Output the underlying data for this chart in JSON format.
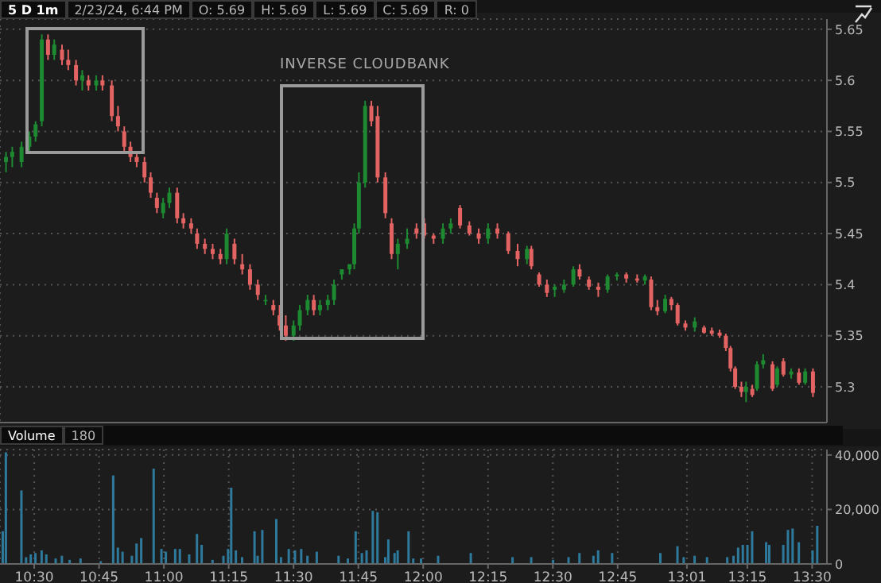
{
  "chart_data": [
    {
      "type": "candlestick",
      "title": "5 D 1m",
      "annotations": [
        "2/23/24, 6:44 PM",
        "O: 5.69",
        "H: 5.69",
        "L: 5.69",
        "C: 5.69",
        "R: 0",
        "INVERSE CLOUDBANK"
      ],
      "x": [
        10.392,
        10.416,
        10.452,
        10.482,
        10.506,
        10.53,
        10.554,
        10.578,
        10.608,
        10.632,
        10.662,
        10.686,
        10.71,
        10.74,
        10.764,
        10.8,
        10.824,
        10.848,
        10.872,
        10.896,
        10.926,
        10.95,
        10.974,
        10.998,
        11.022,
        11.052,
        11.076,
        11.106,
        11.129,
        11.159,
        11.189,
        11.219,
        11.243,
        11.273,
        11.303,
        11.333,
        11.363,
        11.393,
        11.423,
        11.447,
        11.471,
        11.501,
        11.525,
        11.555,
        11.579,
        11.603,
        11.633,
        11.657,
        11.687,
        11.717,
        11.735,
        11.753,
        11.777,
        11.801,
        11.825,
        11.855,
        11.879,
        11.903,
        11.939,
        11.975,
        12.005,
        12.041,
        12.077,
        12.107,
        12.143,
        12.179,
        12.215,
        12.251,
        12.287,
        12.329,
        12.365,
        12.401,
        12.418,
        12.448,
        12.478,
        12.508,
        12.544,
        12.58,
        12.604,
        12.64,
        12.676,
        12.712,
        12.748,
        12.784,
        12.826,
        12.856,
        12.88,
        12.904,
        12.934,
        12.958,
        12.982,
        13.012,
        13.048,
        13.084,
        13.114,
        13.144,
        13.168,
        13.186,
        13.204,
        13.228,
        13.246,
        13.27,
        13.288,
        13.312,
        13.348,
        13.366,
        13.39,
        13.42,
        13.45,
        13.474,
        13.504
      ],
      "ohlc": [
        [
          5.52,
          5.53,
          5.51,
          5.525
        ],
        [
          5.525,
          5.535,
          5.515,
          5.53
        ],
        [
          5.52,
          5.54,
          5.515,
          5.535
        ],
        [
          5.535,
          5.55,
          5.53,
          5.545
        ],
        [
          5.545,
          5.56,
          5.54,
          5.557
        ],
        [
          5.56,
          5.645,
          5.555,
          5.64
        ],
        [
          5.64,
          5.645,
          5.62,
          5.625
        ],
        [
          5.625,
          5.64,
          5.62,
          5.635
        ],
        [
          5.63,
          5.635,
          5.615,
          5.62
        ],
        [
          5.62,
          5.63,
          5.61,
          5.615
        ],
        [
          5.615,
          5.62,
          5.595,
          5.6
        ],
        [
          5.6,
          5.61,
          5.59,
          5.605
        ],
        [
          5.6,
          5.605,
          5.59,
          5.595
        ],
        [
          5.595,
          5.605,
          5.59,
          5.6
        ],
        [
          5.6,
          5.605,
          5.59,
          5.595
        ],
        [
          5.595,
          5.6,
          5.56,
          5.565
        ],
        [
          5.565,
          5.575,
          5.55,
          5.555
        ],
        [
          5.55,
          5.555,
          5.53,
          5.535
        ],
        [
          5.535,
          5.54,
          5.52,
          5.525
        ],
        [
          5.525,
          5.53,
          5.515,
          5.52
        ],
        [
          5.52,
          5.525,
          5.5,
          5.505
        ],
        [
          5.505,
          5.51,
          5.485,
          5.49
        ],
        [
          5.485,
          5.49,
          5.47,
          5.475
        ],
        [
          5.47,
          5.485,
          5.465,
          5.48
        ],
        [
          5.48,
          5.495,
          5.475,
          5.49
        ],
        [
          5.49,
          5.495,
          5.46,
          5.465
        ],
        [
          5.465,
          5.47,
          5.455,
          5.46
        ],
        [
          5.46,
          5.465,
          5.45,
          5.455
        ],
        [
          5.45,
          5.455,
          5.435,
          5.44
        ],
        [
          5.44,
          5.445,
          5.43,
          5.435
        ],
        [
          5.435,
          5.44,
          5.425,
          5.43
        ],
        [
          5.43,
          5.435,
          5.42,
          5.425
        ],
        [
          5.425,
          5.455,
          5.42,
          5.45
        ],
        [
          5.44,
          5.445,
          5.42,
          5.425
        ],
        [
          5.42,
          5.43,
          5.41,
          5.415
        ],
        [
          5.415,
          5.42,
          5.395,
          5.4
        ],
        [
          5.4,
          5.405,
          5.385,
          5.39
        ],
        [
          5.385,
          5.39,
          5.38,
          5.385
        ],
        [
          5.38,
          5.385,
          5.37,
          5.375
        ],
        [
          5.37,
          5.38,
          5.355,
          5.36
        ],
        [
          5.36,
          5.37,
          5.345,
          5.35
        ],
        [
          5.35,
          5.365,
          5.345,
          5.36
        ],
        [
          5.36,
          5.38,
          5.355,
          5.375
        ],
        [
          5.375,
          5.39,
          5.37,
          5.385
        ],
        [
          5.385,
          5.39,
          5.37,
          5.375
        ],
        [
          5.375,
          5.385,
          5.37,
          5.38
        ],
        [
          5.38,
          5.39,
          5.375,
          5.385
        ],
        [
          5.385,
          5.405,
          5.38,
          5.4
        ],
        [
          5.41,
          5.415,
          5.405,
          5.415
        ],
        [
          5.415,
          5.42,
          5.41,
          5.42
        ],
        [
          5.42,
          5.46,
          5.415,
          5.455
        ],
        [
          5.455,
          5.51,
          5.45,
          5.5
        ],
        [
          5.5,
          5.58,
          5.495,
          5.575
        ],
        [
          5.575,
          5.58,
          5.555,
          5.56
        ],
        [
          5.565,
          5.575,
          5.5,
          5.505
        ],
        [
          5.505,
          5.51,
          5.465,
          5.47
        ],
        [
          5.46,
          5.465,
          5.425,
          5.43
        ],
        [
          5.43,
          5.445,
          5.415,
          5.44
        ],
        [
          5.44,
          5.455,
          5.435,
          5.445
        ],
        [
          5.455,
          5.46,
          5.445,
          5.45
        ],
        [
          5.46,
          5.465,
          5.445,
          5.448
        ],
        [
          5.448,
          5.45,
          5.44,
          5.445
        ],
        [
          5.445,
          5.46,
          5.44,
          5.455
        ],
        [
          5.455,
          5.465,
          5.45,
          5.46
        ],
        [
          5.475,
          5.478,
          5.455,
          5.458
        ],
        [
          5.458,
          5.462,
          5.448,
          5.45
        ],
        [
          5.45,
          5.455,
          5.44,
          5.445
        ],
        [
          5.445,
          5.46,
          5.44,
          5.455
        ],
        [
          5.455,
          5.46,
          5.445,
          5.45
        ],
        [
          5.45,
          5.452,
          5.43,
          5.433
        ],
        [
          5.433,
          5.44,
          5.418,
          5.425
        ],
        [
          5.425,
          5.438,
          5.42,
          5.435
        ],
        [
          5.435,
          5.438,
          5.415,
          5.418
        ],
        [
          5.41,
          5.412,
          5.398,
          5.4
        ],
        [
          5.4,
          5.405,
          5.388,
          5.392
        ],
        [
          5.395,
          5.4,
          5.388,
          5.398
        ],
        [
          5.395,
          5.405,
          5.392,
          5.4
        ],
        [
          5.4,
          5.418,
          5.398,
          5.415
        ],
        [
          5.415,
          5.42,
          5.405,
          5.408
        ],
        [
          5.405,
          5.408,
          5.395,
          5.398
        ],
        [
          5.398,
          5.402,
          5.388,
          5.395
        ],
        [
          5.395,
          5.41,
          5.392,
          5.408
        ],
        [
          5.408,
          5.412,
          5.404,
          5.41
        ],
        [
          5.41,
          5.412,
          5.402,
          5.406
        ],
        [
          5.406,
          5.41,
          5.402,
          5.404
        ],
        [
          5.404,
          5.41,
          5.4,
          5.408
        ],
        [
          5.405,
          5.408,
          5.375,
          5.378
        ],
        [
          5.378,
          5.385,
          5.37,
          5.374
        ],
        [
          5.374,
          5.39,
          5.372,
          5.386
        ],
        [
          5.386,
          5.388,
          5.375,
          5.38
        ],
        [
          5.38,
          5.382,
          5.36,
          5.362
        ],
        [
          5.362,
          5.365,
          5.355,
          5.358
        ],
        [
          5.358,
          5.368,
          5.354,
          5.364
        ],
        [
          5.358,
          5.36,
          5.352,
          5.353
        ],
        [
          5.355,
          5.358,
          5.35,
          5.352
        ],
        [
          5.353,
          5.356,
          5.348,
          5.35
        ],
        [
          5.35,
          5.352,
          5.335,
          5.338
        ],
        [
          5.338,
          5.34,
          5.315,
          5.318
        ],
        [
          5.318,
          5.32,
          5.298,
          5.3
        ],
        [
          5.3,
          5.305,
          5.29,
          5.295
        ],
        [
          5.295,
          5.305,
          5.285,
          5.3
        ],
        [
          5.298,
          5.302,
          5.29,
          5.292
        ],
        [
          5.298,
          5.325,
          5.296,
          5.322
        ],
        [
          5.322,
          5.332,
          5.318,
          5.326
        ],
        [
          5.322,
          5.325,
          5.296,
          5.298
        ],
        [
          5.302,
          5.32,
          5.3,
          5.318
        ],
        [
          5.325,
          5.328,
          5.31,
          5.312
        ],
        [
          5.312,
          5.318,
          5.308,
          5.315
        ],
        [
          5.314,
          5.318,
          5.302,
          5.304
        ],
        [
          5.304,
          5.318,
          5.302,
          5.315
        ],
        [
          5.315,
          5.318,
          5.29,
          5.294
        ]
      ],
      "xlim": [
        10.368,
        13.557
      ],
      "xticks": [
        {
          "value": 10.5,
          "label": null
        },
        {
          "value": 10.75,
          "label": null
        },
        {
          "value": 11,
          "label": null
        },
        {
          "value": 11.25,
          "label": null
        },
        {
          "value": 11.5,
          "label": null
        },
        {
          "value": 11.75,
          "label": null
        },
        {
          "value": 12,
          "label": null
        },
        {
          "value": 12.25,
          "label": null
        },
        {
          "value": 12.5,
          "label": null
        },
        {
          "value": 12.75,
          "label": null
        },
        {
          "value": 13.017,
          "label": null
        },
        {
          "value": 13.25,
          "label": null
        },
        {
          "value": 13.5,
          "label": null
        }
      ],
      "ylim": [
        5.265,
        5.66
      ],
      "yticks": [
        5.3,
        5.35,
        5.4,
        5.45,
        5.5,
        5.55,
        5.6,
        5.65
      ],
      "tick_labels": "y",
      "grid": true
    },
    {
      "type": "bar",
      "title": "Volume",
      "annotations": [
        "180"
      ],
      "color": "#2e7a9c",
      "x": [
        10.38,
        10.392,
        10.452,
        10.47,
        10.488,
        10.506,
        10.53,
        10.548,
        10.584,
        10.608,
        10.638,
        10.68,
        10.758,
        10.806,
        10.824,
        10.842,
        10.878,
        10.896,
        10.914,
        10.962,
        10.992,
        11.009,
        11.045,
        11.063,
        11.099,
        11.129,
        11.147,
        11.189,
        11.231,
        11.249,
        11.261,
        11.279,
        11.303,
        11.351,
        11.363,
        11.381,
        11.435,
        11.453,
        11.483,
        11.507,
        11.531,
        11.555,
        11.591,
        11.675,
        11.711,
        11.741,
        11.765,
        11.783,
        11.807,
        11.825,
        11.855,
        11.867,
        11.891,
        11.903,
        11.945,
        11.963,
        11.993,
        12.059,
        12.185,
        12.346,
        12.418,
        12.502,
        12.562,
        12.604,
        12.658,
        12.676,
        12.73,
        12.916,
        12.982,
        13.006,
        13.048,
        13.096,
        13.174,
        13.198,
        13.216,
        13.234,
        13.252,
        13.27,
        13.324,
        13.336,
        13.39,
        13.408,
        13.426,
        13.45,
        13.503,
        13.521
      ],
      "values": [
        12000,
        41000,
        27000,
        2500,
        3500,
        4000,
        5000,
        3500,
        2000,
        3000,
        1500,
        2000,
        1000,
        32500,
        6000,
        4500,
        3000,
        7500,
        9500,
        35000,
        5500,
        4500,
        5500,
        5500,
        3500,
        11000,
        7000,
        1500,
        3000,
        5500,
        28000,
        5000,
        2500,
        12000,
        3000,
        12500,
        16500,
        2500,
        5500,
        5000,
        5500,
        3000,
        4500,
        3000,
        2000,
        12000,
        4000,
        5000,
        19500,
        19000,
        2500,
        9000,
        4000,
        5000,
        12000,
        2000,
        2000,
        3000,
        4000,
        2500,
        2500,
        1500,
        2500,
        4000,
        3000,
        5000,
        4000,
        4000,
        6500,
        2500,
        3000,
        2500,
        2500,
        3000,
        6000,
        7000,
        7000,
        12000,
        8000,
        7000,
        7000,
        12500,
        13000,
        8000,
        5000,
        14000
      ],
      "xlim": [
        10.368,
        13.557
      ],
      "xticks": [
        {
          "value": 10.5,
          "label": "10:30"
        },
        {
          "value": 10.75,
          "label": "10:45"
        },
        {
          "value": 11,
          "label": "11:00"
        },
        {
          "value": 11.25,
          "label": "11:15"
        },
        {
          "value": 11.5,
          "label": "11:30"
        },
        {
          "value": 11.75,
          "label": "11:45"
        },
        {
          "value": 12,
          "label": "12:00"
        },
        {
          "value": 12.25,
          "label": "12:15"
        },
        {
          "value": 12.5,
          "label": "12:30"
        },
        {
          "value": 12.75,
          "label": "12:45"
        },
        {
          "value": 13.017,
          "label": "13:01"
        },
        {
          "value": 13.25,
          "label": "13:15"
        },
        {
          "value": 13.5,
          "label": "13:30"
        }
      ],
      "ylim": [
        0,
        42000
      ],
      "yticks": [
        {
          "value": 0,
          "label": "0"
        },
        {
          "value": 20000,
          "label": "20,000"
        },
        {
          "value": 40000,
          "label": "40,000"
        }
      ],
      "grid": true
    }
  ]
}
